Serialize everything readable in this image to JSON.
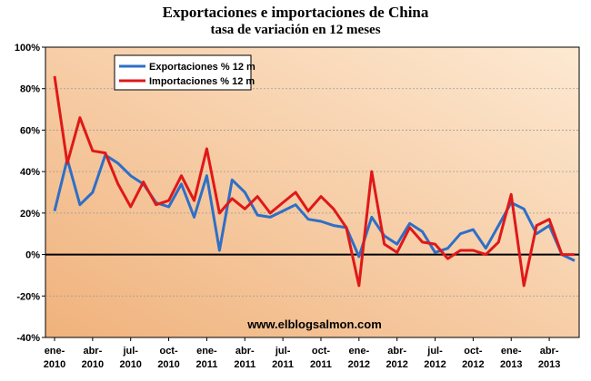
{
  "header": {
    "title": "Exportaciones e importaciones de China",
    "subtitle": "tasa de variación en 12 meses"
  },
  "watermark": "www.elblogsalmon.com",
  "colors": {
    "exportaciones": "#2e6fc7",
    "importaciones": "#e01818",
    "background_light": "#fde9d2",
    "background_dark": "#f0b27c"
  },
  "chart_data": {
    "type": "line",
    "title": "Exportaciones e importaciones de China",
    "subtitle": "tasa de variación en 12 meses",
    "ylim": [
      -40,
      100
    ],
    "y_ticks": [
      "100%",
      "80%",
      "60%",
      "40%",
      "20%",
      "0%",
      "-20%",
      "-40%"
    ],
    "x_ticks": [
      {
        "index": 0,
        "line1": "ene-",
        "line2": "2010"
      },
      {
        "index": 3,
        "line1": "abr-",
        "line2": "2010"
      },
      {
        "index": 6,
        "line1": "jul-",
        "line2": "2010"
      },
      {
        "index": 9,
        "line1": "oct-",
        "line2": "2010"
      },
      {
        "index": 12,
        "line1": "ene-",
        "line2": "2011"
      },
      {
        "index": 15,
        "line1": "abr-",
        "line2": "2011"
      },
      {
        "index": 18,
        "line1": "jul-",
        "line2": "2011"
      },
      {
        "index": 21,
        "line1": "oct-",
        "line2": "2011"
      },
      {
        "index": 24,
        "line1": "ene-",
        "line2": "2012"
      },
      {
        "index": 27,
        "line1": "abr-",
        "line2": "2012"
      },
      {
        "index": 30,
        "line1": "jul-",
        "line2": "2012"
      },
      {
        "index": 33,
        "line1": "oct-",
        "line2": "2012"
      },
      {
        "index": 36,
        "line1": "ene-",
        "line2": "2013"
      },
      {
        "index": 39,
        "line1": "abr-",
        "line2": "2013"
      }
    ],
    "legend_position": "top-left",
    "grid": true,
    "series": [
      {
        "name": "Exportaciones % 12 m",
        "values": [
          21,
          46,
          24,
          30,
          48,
          44,
          38,
          34,
          25,
          23,
          34,
          18,
          38,
          2,
          36,
          30,
          19,
          18,
          21,
          24,
          17,
          16,
          14,
          13,
          -1,
          18,
          9,
          5,
          15,
          11,
          1,
          3,
          10,
          12,
          3,
          14,
          25,
          22,
          10,
          14,
          0,
          -3
        ]
      },
      {
        "name": "Importaciones % 12 m",
        "values": [
          86,
          44,
          66,
          50,
          49,
          34,
          23,
          35,
          24,
          26,
          38,
          26,
          51,
          20,
          27,
          22,
          28,
          20,
          25,
          30,
          21,
          28,
          22,
          13,
          -15,
          40,
          5,
          1,
          13,
          6,
          5,
          -2,
          2,
          2,
          0,
          6,
          29,
          -15,
          14,
          17,
          0,
          0
        ]
      }
    ]
  }
}
